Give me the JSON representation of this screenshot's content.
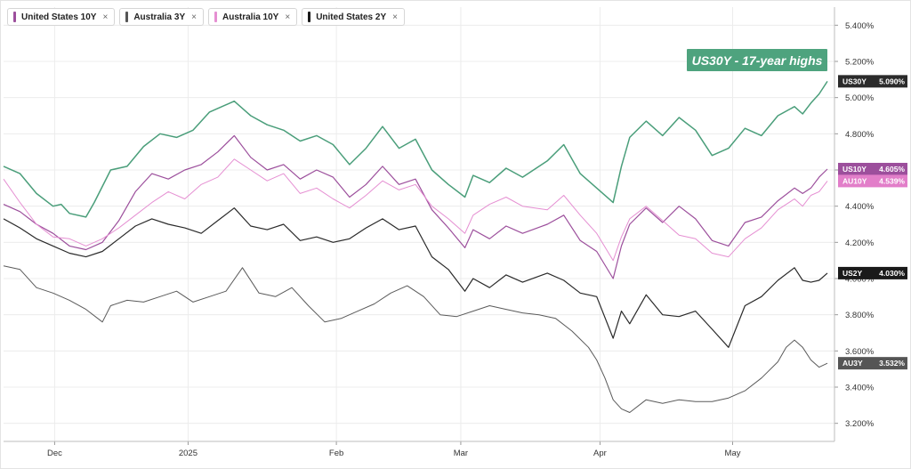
{
  "legend": [
    {
      "label": "United States 10Y",
      "color": "#9c4f9c",
      "close": "×"
    },
    {
      "label": "Australia 3Y",
      "color": "#555555",
      "close": "×"
    },
    {
      "label": "Australia 10Y",
      "color": "#e58fd2",
      "close": "×"
    },
    {
      "label": "United States 2Y",
      "color": "#1a1a1a",
      "close": "×"
    }
  ],
  "annotation": {
    "text": "US30Y - 17-year highs"
  },
  "badges": [
    {
      "name": "US30Y",
      "value": "5.090%",
      "y": 5.09,
      "color": "#2b2b2b"
    },
    {
      "name": "US10Y",
      "value": "4.605%",
      "y": 4.605,
      "color": "#9c4f9c"
    },
    {
      "name": "AU10Y",
      "value": "4.539%",
      "y": 4.539,
      "color": "#e27ec9"
    },
    {
      "name": "US2Y",
      "value": "4.030%",
      "y": 4.03,
      "color": "#1a1a1a"
    },
    {
      "name": "AU3Y",
      "value": "3.532%",
      "y": 3.532,
      "color": "#555555"
    }
  ],
  "chart_data": {
    "type": "line",
    "title": "",
    "xlabel": "",
    "ylabel": "",
    "ylim": [
      3.1,
      5.5
    ],
    "grid": true,
    "legend_position": "top-left",
    "y_ticks": [
      "5.400%",
      "5.200%",
      "5.000%",
      "4.800%",
      "4.600%",
      "4.400%",
      "4.200%",
      "4.000%",
      "3.800%",
      "3.600%",
      "3.400%",
      "3.200%"
    ],
    "y_tick_values": [
      5.4,
      5.2,
      5.0,
      4.8,
      4.6,
      4.4,
      4.2,
      4.0,
      3.8,
      3.6,
      3.4,
      3.2
    ],
    "x_ticks": [
      {
        "label": "Dec",
        "t": 0.062
      },
      {
        "label": "2025",
        "t": 0.224
      },
      {
        "label": "Feb",
        "t": 0.404
      },
      {
        "label": "Mar",
        "t": 0.555
      },
      {
        "label": "Apr",
        "t": 0.724
      },
      {
        "label": "May",
        "t": 0.885
      }
    ],
    "series": [
      {
        "name": "US30Y",
        "color": "#4a9e7a",
        "width": 1.5,
        "points": [
          [
            0.0,
            4.62
          ],
          [
            0.02,
            4.58
          ],
          [
            0.04,
            4.47
          ],
          [
            0.06,
            4.4
          ],
          [
            0.07,
            4.41
          ],
          [
            0.08,
            4.36
          ],
          [
            0.1,
            4.34
          ],
          [
            0.11,
            4.42
          ],
          [
            0.13,
            4.6
          ],
          [
            0.15,
            4.62
          ],
          [
            0.17,
            4.73
          ],
          [
            0.19,
            4.8
          ],
          [
            0.21,
            4.78
          ],
          [
            0.23,
            4.82
          ],
          [
            0.25,
            4.92
          ],
          [
            0.28,
            4.98
          ],
          [
            0.3,
            4.9
          ],
          [
            0.32,
            4.85
          ],
          [
            0.34,
            4.82
          ],
          [
            0.36,
            4.76
          ],
          [
            0.38,
            4.79
          ],
          [
            0.4,
            4.74
          ],
          [
            0.42,
            4.63
          ],
          [
            0.44,
            4.72
          ],
          [
            0.46,
            4.84
          ],
          [
            0.48,
            4.72
          ],
          [
            0.5,
            4.77
          ],
          [
            0.52,
            4.6
          ],
          [
            0.54,
            4.52
          ],
          [
            0.56,
            4.45
          ],
          [
            0.57,
            4.57
          ],
          [
            0.59,
            4.53
          ],
          [
            0.61,
            4.61
          ],
          [
            0.63,
            4.56
          ],
          [
            0.66,
            4.65
          ],
          [
            0.68,
            4.74
          ],
          [
            0.7,
            4.58
          ],
          [
            0.72,
            4.5
          ],
          [
            0.74,
            4.42
          ],
          [
            0.75,
            4.62
          ],
          [
            0.76,
            4.78
          ],
          [
            0.78,
            4.87
          ],
          [
            0.8,
            4.79
          ],
          [
            0.82,
            4.89
          ],
          [
            0.84,
            4.82
          ],
          [
            0.86,
            4.68
          ],
          [
            0.88,
            4.72
          ],
          [
            0.9,
            4.83
          ],
          [
            0.92,
            4.79
          ],
          [
            0.94,
            4.9
          ],
          [
            0.96,
            4.95
          ],
          [
            0.97,
            4.91
          ],
          [
            0.98,
            4.97
          ],
          [
            0.99,
            5.02
          ],
          [
            1.0,
            5.09
          ]
        ]
      },
      {
        "name": "US10Y",
        "color": "#9c4f9c",
        "width": 1.2,
        "points": [
          [
            0.0,
            4.41
          ],
          [
            0.02,
            4.37
          ],
          [
            0.04,
            4.3
          ],
          [
            0.06,
            4.25
          ],
          [
            0.08,
            4.18
          ],
          [
            0.1,
            4.16
          ],
          [
            0.12,
            4.2
          ],
          [
            0.14,
            4.32
          ],
          [
            0.16,
            4.48
          ],
          [
            0.18,
            4.58
          ],
          [
            0.2,
            4.55
          ],
          [
            0.22,
            4.6
          ],
          [
            0.24,
            4.63
          ],
          [
            0.26,
            4.7
          ],
          [
            0.28,
            4.79
          ],
          [
            0.3,
            4.67
          ],
          [
            0.32,
            4.6
          ],
          [
            0.34,
            4.63
          ],
          [
            0.36,
            4.55
          ],
          [
            0.38,
            4.6
          ],
          [
            0.4,
            4.56
          ],
          [
            0.42,
            4.45
          ],
          [
            0.44,
            4.52
          ],
          [
            0.46,
            4.62
          ],
          [
            0.48,
            4.52
          ],
          [
            0.5,
            4.55
          ],
          [
            0.52,
            4.38
          ],
          [
            0.54,
            4.28
          ],
          [
            0.56,
            4.17
          ],
          [
            0.57,
            4.27
          ],
          [
            0.59,
            4.22
          ],
          [
            0.61,
            4.29
          ],
          [
            0.63,
            4.25
          ],
          [
            0.66,
            4.3
          ],
          [
            0.68,
            4.35
          ],
          [
            0.7,
            4.21
          ],
          [
            0.72,
            4.15
          ],
          [
            0.74,
            4.0
          ],
          [
            0.75,
            4.18
          ],
          [
            0.76,
            4.3
          ],
          [
            0.78,
            4.39
          ],
          [
            0.8,
            4.31
          ],
          [
            0.82,
            4.4
          ],
          [
            0.84,
            4.33
          ],
          [
            0.86,
            4.21
          ],
          [
            0.88,
            4.18
          ],
          [
            0.9,
            4.31
          ],
          [
            0.92,
            4.34
          ],
          [
            0.94,
            4.43
          ],
          [
            0.96,
            4.5
          ],
          [
            0.97,
            4.47
          ],
          [
            0.98,
            4.5
          ],
          [
            0.99,
            4.56
          ],
          [
            1.0,
            4.605
          ]
        ]
      },
      {
        "name": "AU10Y",
        "color": "#e58fd2",
        "width": 1.0,
        "points": [
          [
            0.0,
            4.55
          ],
          [
            0.02,
            4.42
          ],
          [
            0.04,
            4.3
          ],
          [
            0.06,
            4.23
          ],
          [
            0.08,
            4.22
          ],
          [
            0.1,
            4.18
          ],
          [
            0.12,
            4.22
          ],
          [
            0.14,
            4.28
          ],
          [
            0.16,
            4.35
          ],
          [
            0.18,
            4.42
          ],
          [
            0.2,
            4.48
          ],
          [
            0.22,
            4.44
          ],
          [
            0.24,
            4.52
          ],
          [
            0.26,
            4.56
          ],
          [
            0.28,
            4.66
          ],
          [
            0.3,
            4.6
          ],
          [
            0.32,
            4.54
          ],
          [
            0.34,
            4.58
          ],
          [
            0.36,
            4.47
          ],
          [
            0.38,
            4.5
          ],
          [
            0.4,
            4.44
          ],
          [
            0.42,
            4.39
          ],
          [
            0.44,
            4.46
          ],
          [
            0.46,
            4.54
          ],
          [
            0.48,
            4.49
          ],
          [
            0.5,
            4.52
          ],
          [
            0.52,
            4.4
          ],
          [
            0.54,
            4.33
          ],
          [
            0.56,
            4.25
          ],
          [
            0.57,
            4.35
          ],
          [
            0.59,
            4.41
          ],
          [
            0.61,
            4.45
          ],
          [
            0.63,
            4.4
          ],
          [
            0.66,
            4.38
          ],
          [
            0.68,
            4.46
          ],
          [
            0.7,
            4.35
          ],
          [
            0.72,
            4.25
          ],
          [
            0.74,
            4.1
          ],
          [
            0.75,
            4.23
          ],
          [
            0.76,
            4.33
          ],
          [
            0.78,
            4.4
          ],
          [
            0.8,
            4.32
          ],
          [
            0.82,
            4.24
          ],
          [
            0.84,
            4.22
          ],
          [
            0.86,
            4.14
          ],
          [
            0.88,
            4.12
          ],
          [
            0.9,
            4.22
          ],
          [
            0.92,
            4.28
          ],
          [
            0.94,
            4.38
          ],
          [
            0.96,
            4.44
          ],
          [
            0.97,
            4.4
          ],
          [
            0.98,
            4.46
          ],
          [
            0.99,
            4.48
          ],
          [
            1.0,
            4.539
          ]
        ]
      },
      {
        "name": "US2Y",
        "color": "#2a2a2a",
        "width": 1.2,
        "points": [
          [
            0.0,
            4.33
          ],
          [
            0.02,
            4.28
          ],
          [
            0.04,
            4.22
          ],
          [
            0.06,
            4.18
          ],
          [
            0.08,
            4.14
          ],
          [
            0.1,
            4.12
          ],
          [
            0.12,
            4.15
          ],
          [
            0.14,
            4.22
          ],
          [
            0.16,
            4.29
          ],
          [
            0.18,
            4.33
          ],
          [
            0.2,
            4.3
          ],
          [
            0.22,
            4.28
          ],
          [
            0.24,
            4.25
          ],
          [
            0.26,
            4.32
          ],
          [
            0.28,
            4.39
          ],
          [
            0.3,
            4.29
          ],
          [
            0.32,
            4.27
          ],
          [
            0.34,
            4.3
          ],
          [
            0.36,
            4.21
          ],
          [
            0.38,
            4.23
          ],
          [
            0.4,
            4.2
          ],
          [
            0.42,
            4.22
          ],
          [
            0.44,
            4.28
          ],
          [
            0.46,
            4.33
          ],
          [
            0.48,
            4.27
          ],
          [
            0.5,
            4.29
          ],
          [
            0.52,
            4.12
          ],
          [
            0.54,
            4.05
          ],
          [
            0.56,
            3.93
          ],
          [
            0.57,
            4.0
          ],
          [
            0.59,
            3.95
          ],
          [
            0.61,
            4.02
          ],
          [
            0.63,
            3.98
          ],
          [
            0.66,
            4.03
          ],
          [
            0.68,
            3.99
          ],
          [
            0.7,
            3.92
          ],
          [
            0.72,
            3.9
          ],
          [
            0.74,
            3.67
          ],
          [
            0.75,
            3.82
          ],
          [
            0.76,
            3.75
          ],
          [
            0.78,
            3.91
          ],
          [
            0.8,
            3.8
          ],
          [
            0.82,
            3.79
          ],
          [
            0.84,
            3.82
          ],
          [
            0.86,
            3.72
          ],
          [
            0.88,
            3.62
          ],
          [
            0.9,
            3.85
          ],
          [
            0.92,
            3.9
          ],
          [
            0.94,
            3.99
          ],
          [
            0.96,
            4.06
          ],
          [
            0.97,
            3.99
          ],
          [
            0.98,
            3.98
          ],
          [
            0.99,
            3.99
          ],
          [
            1.0,
            4.03
          ]
        ]
      },
      {
        "name": "AU3Y",
        "color": "#5a5a5a",
        "width": 1.0,
        "points": [
          [
            0.0,
            4.07
          ],
          [
            0.02,
            4.05
          ],
          [
            0.04,
            3.95
          ],
          [
            0.06,
            3.92
          ],
          [
            0.08,
            3.88
          ],
          [
            0.1,
            3.83
          ],
          [
            0.12,
            3.76
          ],
          [
            0.13,
            3.85
          ],
          [
            0.15,
            3.88
          ],
          [
            0.17,
            3.87
          ],
          [
            0.19,
            3.9
          ],
          [
            0.21,
            3.93
          ],
          [
            0.23,
            3.87
          ],
          [
            0.25,
            3.9
          ],
          [
            0.27,
            3.93
          ],
          [
            0.29,
            4.06
          ],
          [
            0.31,
            3.92
          ],
          [
            0.33,
            3.9
          ],
          [
            0.35,
            3.95
          ],
          [
            0.37,
            3.85
          ],
          [
            0.39,
            3.76
          ],
          [
            0.41,
            3.78
          ],
          [
            0.43,
            3.82
          ],
          [
            0.45,
            3.86
          ],
          [
            0.47,
            3.92
          ],
          [
            0.49,
            3.96
          ],
          [
            0.51,
            3.9
          ],
          [
            0.53,
            3.8
          ],
          [
            0.55,
            3.79
          ],
          [
            0.57,
            3.82
          ],
          [
            0.59,
            3.85
          ],
          [
            0.61,
            3.83
          ],
          [
            0.63,
            3.81
          ],
          [
            0.65,
            3.8
          ],
          [
            0.67,
            3.78
          ],
          [
            0.69,
            3.71
          ],
          [
            0.71,
            3.62
          ],
          [
            0.72,
            3.55
          ],
          [
            0.73,
            3.45
          ],
          [
            0.74,
            3.33
          ],
          [
            0.75,
            3.28
          ],
          [
            0.76,
            3.26
          ],
          [
            0.78,
            3.33
          ],
          [
            0.8,
            3.31
          ],
          [
            0.82,
            3.33
          ],
          [
            0.84,
            3.32
          ],
          [
            0.86,
            3.32
          ],
          [
            0.88,
            3.34
          ],
          [
            0.9,
            3.38
          ],
          [
            0.92,
            3.45
          ],
          [
            0.94,
            3.54
          ],
          [
            0.95,
            3.62
          ],
          [
            0.96,
            3.66
          ],
          [
            0.97,
            3.62
          ],
          [
            0.98,
            3.55
          ],
          [
            0.99,
            3.51
          ],
          [
            1.0,
            3.532
          ]
        ]
      }
    ]
  }
}
